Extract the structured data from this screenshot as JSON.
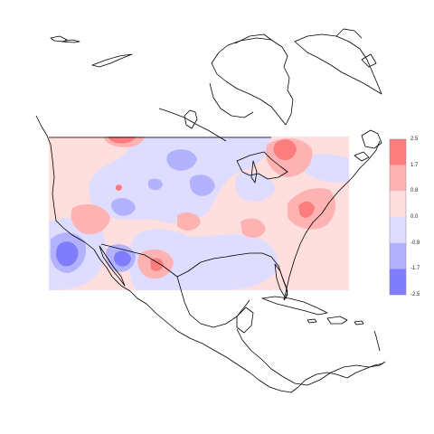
{
  "map": {
    "type": "anomaly-contour-map",
    "region": "North America",
    "colors": {
      "strong_positive": "#fb7d7d",
      "positive": "#feb2b2",
      "weak_positive": "#ffdede",
      "weak_negative": "#dedcff",
      "negative": "#b2b2ff",
      "strong_negative": "#7f7dfb",
      "coastline": "#000000"
    }
  },
  "legend": {
    "ticks": [
      "2.5",
      "1.7",
      "0.8",
      "0.0",
      "-0.8",
      "-1.7",
      "-2.5"
    ],
    "bins": [
      {
        "from": 1.7,
        "to": 2.5,
        "color": "#fb7d7d"
      },
      {
        "from": 0.8,
        "to": 1.7,
        "color": "#feb2b2"
      },
      {
        "from": 0.0,
        "to": 0.8,
        "color": "#ffdede"
      },
      {
        "from": -0.8,
        "to": 0.0,
        "color": "#dedcff"
      },
      {
        "from": -1.7,
        "to": -0.8,
        "color": "#b2b2ff"
      },
      {
        "from": -2.5,
        "to": -1.7,
        "color": "#7f7dfb"
      }
    ]
  }
}
